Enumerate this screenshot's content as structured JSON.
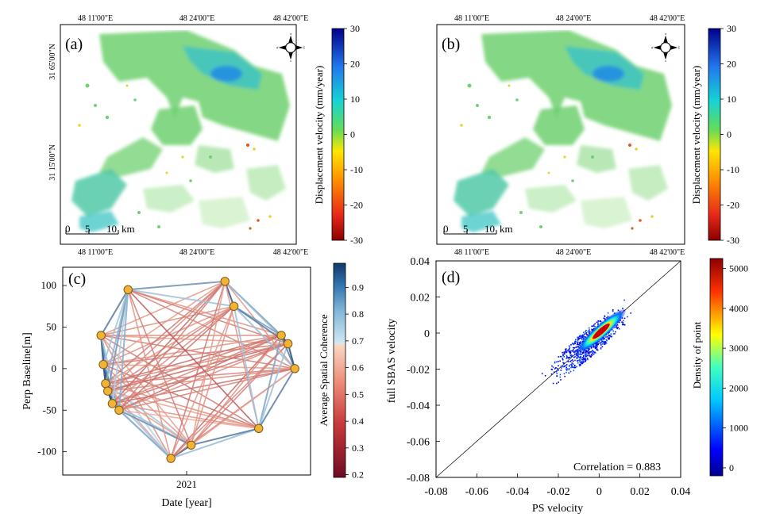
{
  "colors": {
    "ink": "#000000",
    "marker_fill": "#f2b233",
    "marker_stroke": "#7a5a1a"
  },
  "chart_data": [
    {
      "id": "a",
      "type": "heatmap",
      "panel_label": "(a)",
      "top_ticks": [
        "48 11'00\"E",
        "48 24'00\"E",
        "48 42'00\"E"
      ],
      "bottom_ticks": [
        "48 11'00\"E",
        "48 24'00\"E",
        "48 42'00\"E"
      ],
      "left_ticks": [
        "31 65'00\"N",
        "31 15'00\"N"
      ],
      "scale_bar": {
        "ticks": [
          "0",
          "5",
          "10"
        ],
        "unit": "km"
      },
      "colorbar": {
        "label": "Displacement velocity (mm/year)",
        "ticks": [
          "30",
          "20",
          "10",
          "0",
          "-10",
          "-20",
          "-30"
        ],
        "range": [
          -30,
          30
        ],
        "colormap": [
          "#8b0000",
          "#e8281a",
          "#ff8c00",
          "#ffe600",
          "#66dd55",
          "#14d4d4",
          "#2277ee",
          "#00008b"
        ]
      },
      "compass_icon": "north-arrow-compass-icon"
    },
    {
      "id": "b",
      "type": "heatmap",
      "panel_label": "(b)",
      "top_ticks": [
        "48 11'00\"E",
        "48 24'00\"E",
        "48 42'00\"E"
      ],
      "bottom_ticks": [
        "48 11'00\"E",
        "48 24'00\"E",
        "48 42'00\"E"
      ],
      "scale_bar": {
        "ticks": [
          "0",
          "5",
          "10"
        ],
        "unit": "km"
      },
      "colorbar": {
        "label": "Displacement velocity (mm/year)",
        "ticks": [
          "30",
          "20",
          "10",
          "0",
          "-10",
          "-20",
          "-30"
        ],
        "range": [
          -30,
          30
        ],
        "colormap": [
          "#8b0000",
          "#e8281a",
          "#ff8c00",
          "#ffe600",
          "#66dd55",
          "#14d4d4",
          "#2277ee",
          "#00008b"
        ]
      },
      "compass_icon": "north-arrow-compass-icon"
    },
    {
      "id": "c",
      "type": "scatter",
      "panel_label": "(c)",
      "xlabel": "Date [year]",
      "ylabel": "Perp Baseline[m]",
      "x_ticks": [
        "2021"
      ],
      "y_ticks": [
        100,
        50,
        0,
        -50,
        -100
      ],
      "xlim": [
        2020.45,
        2021.55
      ],
      "ylim": [
        -128,
        122
      ],
      "points": [
        {
          "t": 2020.62,
          "b": 40
        },
        {
          "t": 2020.63,
          "b": 5
        },
        {
          "t": 2020.64,
          "b": -18
        },
        {
          "t": 2020.65,
          "b": -27
        },
        {
          "t": 2020.67,
          "b": -42
        },
        {
          "t": 2020.7,
          "b": -50
        },
        {
          "t": 2020.74,
          "b": 95
        },
        {
          "t": 2020.93,
          "b": -108
        },
        {
          "t": 2021.02,
          "b": -92
        },
        {
          "t": 2021.17,
          "b": 105
        },
        {
          "t": 2021.21,
          "b": 75
        },
        {
          "t": 2021.32,
          "b": -72
        },
        {
          "t": 2021.42,
          "b": 40
        },
        {
          "t": 2021.45,
          "b": 30
        },
        {
          "t": 2021.48,
          "b": 0
        }
      ],
      "colorbar": {
        "label": "Average Spatial Coherence",
        "ticks": [
          "0.9",
          "0.8",
          "0.7",
          "0.6",
          "0.5",
          "0.4",
          "0.3",
          "0.2"
        ],
        "range": [
          0.19,
          0.99
        ]
      }
    },
    {
      "id": "d",
      "type": "scatter",
      "subtype": "density",
      "panel_label": "(d)",
      "xlabel": "PS velocity",
      "ylabel": "full  SBAS  velocity",
      "x_ticks": [
        "-0.08",
        "-0.06",
        "-0.04",
        "-0.02",
        "0",
        "0.02",
        "0.04"
      ],
      "y_ticks": [
        "0.04",
        "0.02",
        "0",
        "-0.02",
        "-0.04",
        "-0.06",
        "-0.08"
      ],
      "xlim": [
        -0.08,
        0.04
      ],
      "ylim": [
        -0.08,
        0.04
      ],
      "annotation": "Correlation = 0.883",
      "correlation": 0.883,
      "colorbar": {
        "label": "Density of point",
        "ticks": [
          "5000",
          "4000",
          "3000",
          "2000",
          "1000",
          "0"
        ],
        "range": [
          -200,
          5250
        ]
      }
    }
  ]
}
